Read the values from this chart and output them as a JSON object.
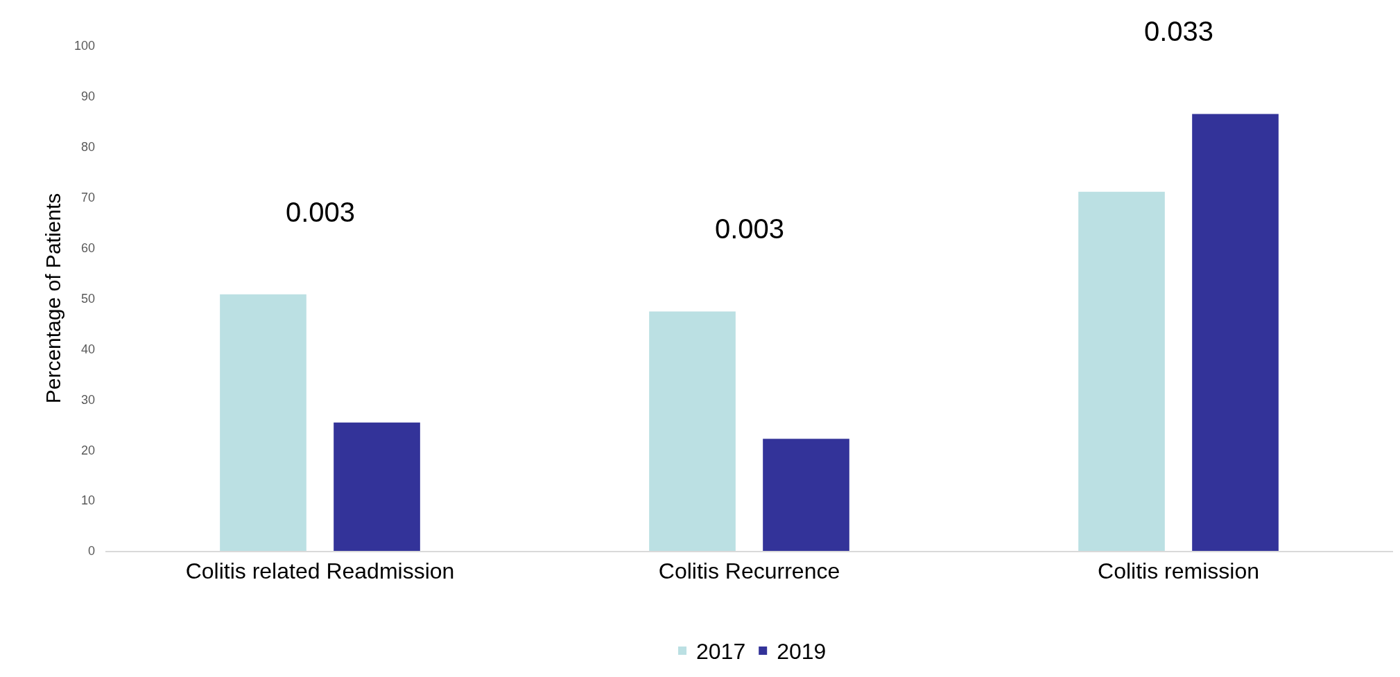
{
  "chart_data": {
    "type": "bar",
    "ylabel": "Percentage of Patients",
    "categories": [
      "Colitis related Readmission",
      "Colitis Recurrence",
      "Colitis remission"
    ],
    "series": [
      {
        "name": "2017",
        "color": "#bbe0e3",
        "values": [
          50.8,
          47.4,
          71.1
        ]
      },
      {
        "name": "2019",
        "color": "#333399",
        "values": [
          25.4,
          22.2,
          86.5
        ]
      }
    ],
    "ylim": [
      0,
      100
    ],
    "yticks": [
      0,
      10,
      20,
      30,
      40,
      50,
      60,
      70,
      80,
      90,
      100
    ],
    "annotations": [
      "0.003",
      "0.003",
      "0.033"
    ],
    "legend": "bottom"
  }
}
